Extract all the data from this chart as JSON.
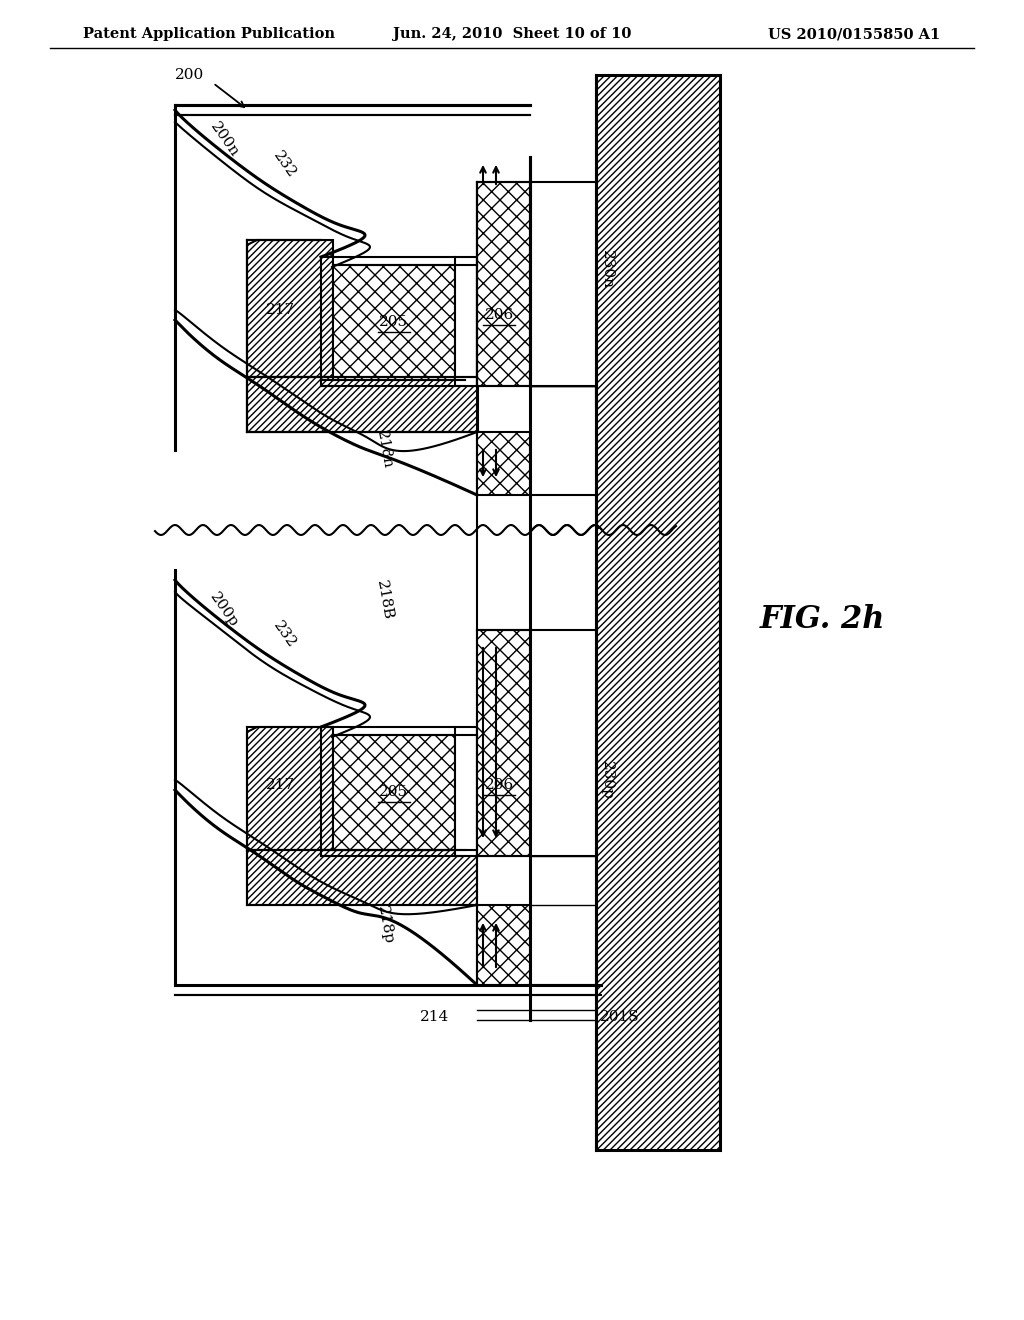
{
  "header_left": "Patent Application Publication",
  "header_mid": "Jun. 24, 2010  Sheet 10 of 10",
  "header_right": "US 2010/0155850 A1",
  "fig_label": "FIG. 2h",
  "bg_color": "#ffffff"
}
